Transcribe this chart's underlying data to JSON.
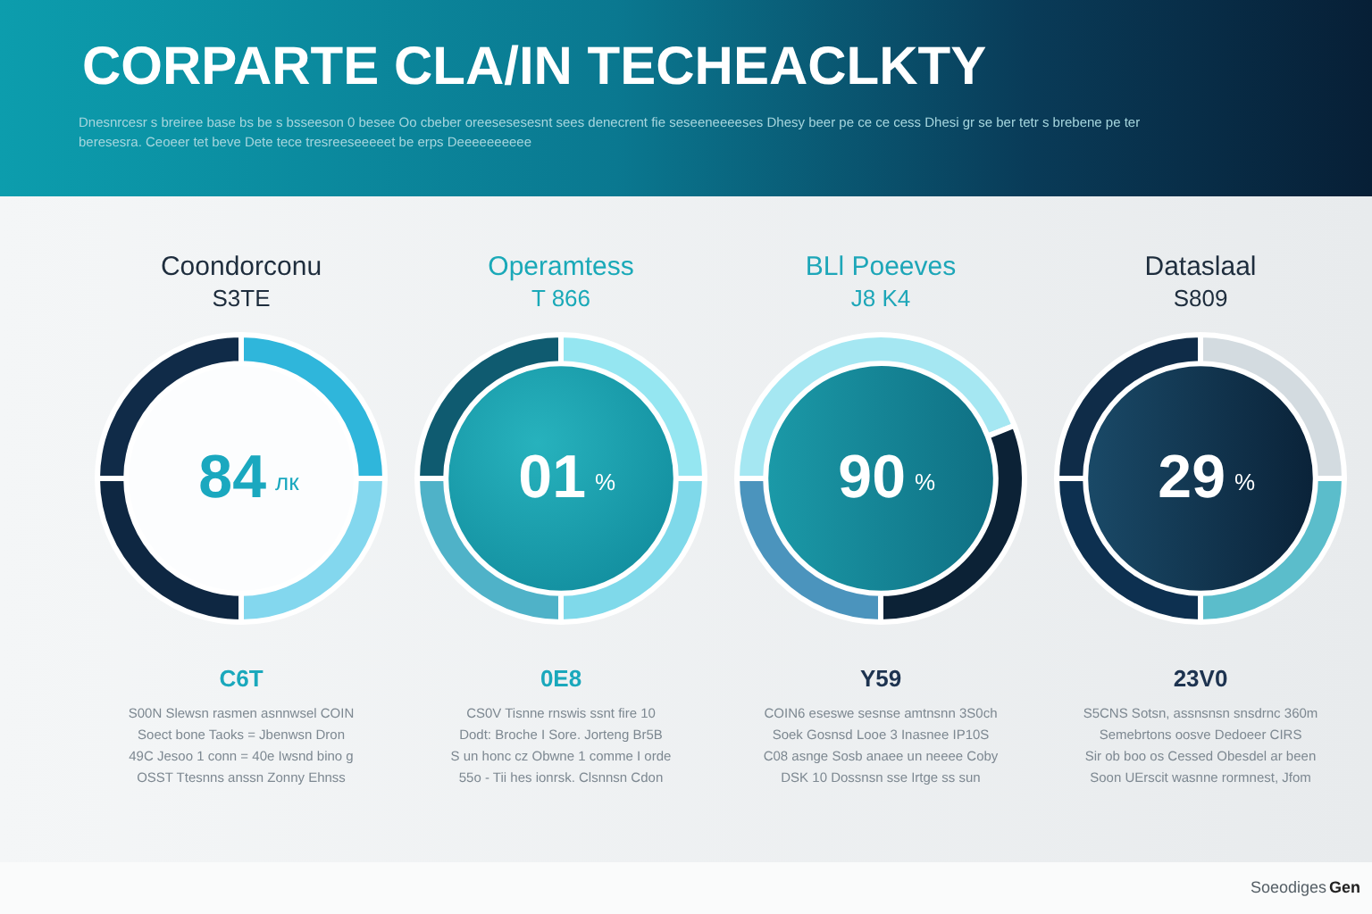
{
  "chart_data": [
    {
      "type": "other",
      "title": "CORPARTE CLA/IN TECHEACLKTY",
      "subtitle": "Dnesnrcesr s breiree base bs be s bsseeson 0 besee Oo cbeber oreesesesesnt sees denecrent fie seseeneeeeses Dhesy beer pe ce ce cess Dhesi gr se ber tetr s brebene pe ter beresesra. Ceoeer tet beve Dete tece tresreeseeeeet be erps Deeeeeeeeee"
    },
    {
      "type": "donut",
      "title": "Coondorconu",
      "subtitle": "S3TE",
      "categories": [
        null,
        null,
        null,
        null
      ],
      "values": [
        25,
        25,
        25,
        25
      ],
      "colors": [
        "#102b48",
        "#2fb6db",
        "#83d7ee",
        "#0e2742"
      ],
      "annotations": [
        "84",
        "лк",
        "C6T",
        "S00N Slewsn rasmen asnnwsel COIN",
        "Soect bone Taoks = Jbenwsn Dron",
        "49C Jesoo 1 conn = 40e Iwsnd bino g",
        "OSST Ttesnns anssn Zonny Ehnss"
      ]
    },
    {
      "type": "donut",
      "title": "Operamtess",
      "subtitle": "T 866",
      "categories": [
        null,
        null,
        null,
        null
      ],
      "values": [
        25,
        25,
        25,
        25
      ],
      "colors": [
        "#0f5b70",
        "#95e6f1",
        "#7fd9ea",
        "#4fb2c8"
      ],
      "annotations": [
        "01",
        "%",
        "0E8",
        "CS0V Tisnne rnswis ssnt fire 10",
        "Dodt: Broche I Sore. Jorteng Br5B",
        "S un honc cz Obwne 1 comme I orde",
        "55o - Tii hes ionrsk. Clsnnsn Cdon"
      ]
    },
    {
      "type": "donut",
      "title": "BLl Poeeves",
      "subtitle": "J8 K4",
      "categories": [
        null,
        null,
        null
      ],
      "values": [
        44,
        31,
        25
      ],
      "colors": [
        "#a5e7f2",
        "#0c2236",
        "#4b94bd"
      ],
      "annotations": [
        "90",
        "%",
        "Y59",
        "COIN6 eseswe sesnse amtnsnn 3S0ch",
        "Soek Gosnsd Looe 3 Inasnee IP10S",
        "C08 asnge Sosb anaee un neeee Coby",
        "DSK 10 Dossnsn sse Irtge ss sun"
      ]
    },
    {
      "type": "donut",
      "title": "Dataslaal",
      "subtitle": "S809",
      "categories": [
        null,
        null,
        null,
        null
      ],
      "values": [
        25,
        25,
        25,
        25
      ],
      "colors": [
        "#0f2c48",
        "#d3dbe0",
        "#5bbdcb",
        "#0d3050"
      ],
      "annotations": [
        "29",
        "%",
        "23V0",
        "S5CNS Sotsn, assnsnsn snsdrnc 360m",
        "Semebrtons oosve Dedoeer CIRS",
        "Sir ob boo os Cessed Obesdel ar been",
        "Soon UErscit wasnne rormnest, Jfom"
      ]
    },
    {
      "type": "other",
      "annotations": [
        "Soeodiges",
        "Gen"
      ]
    }
  ]
}
